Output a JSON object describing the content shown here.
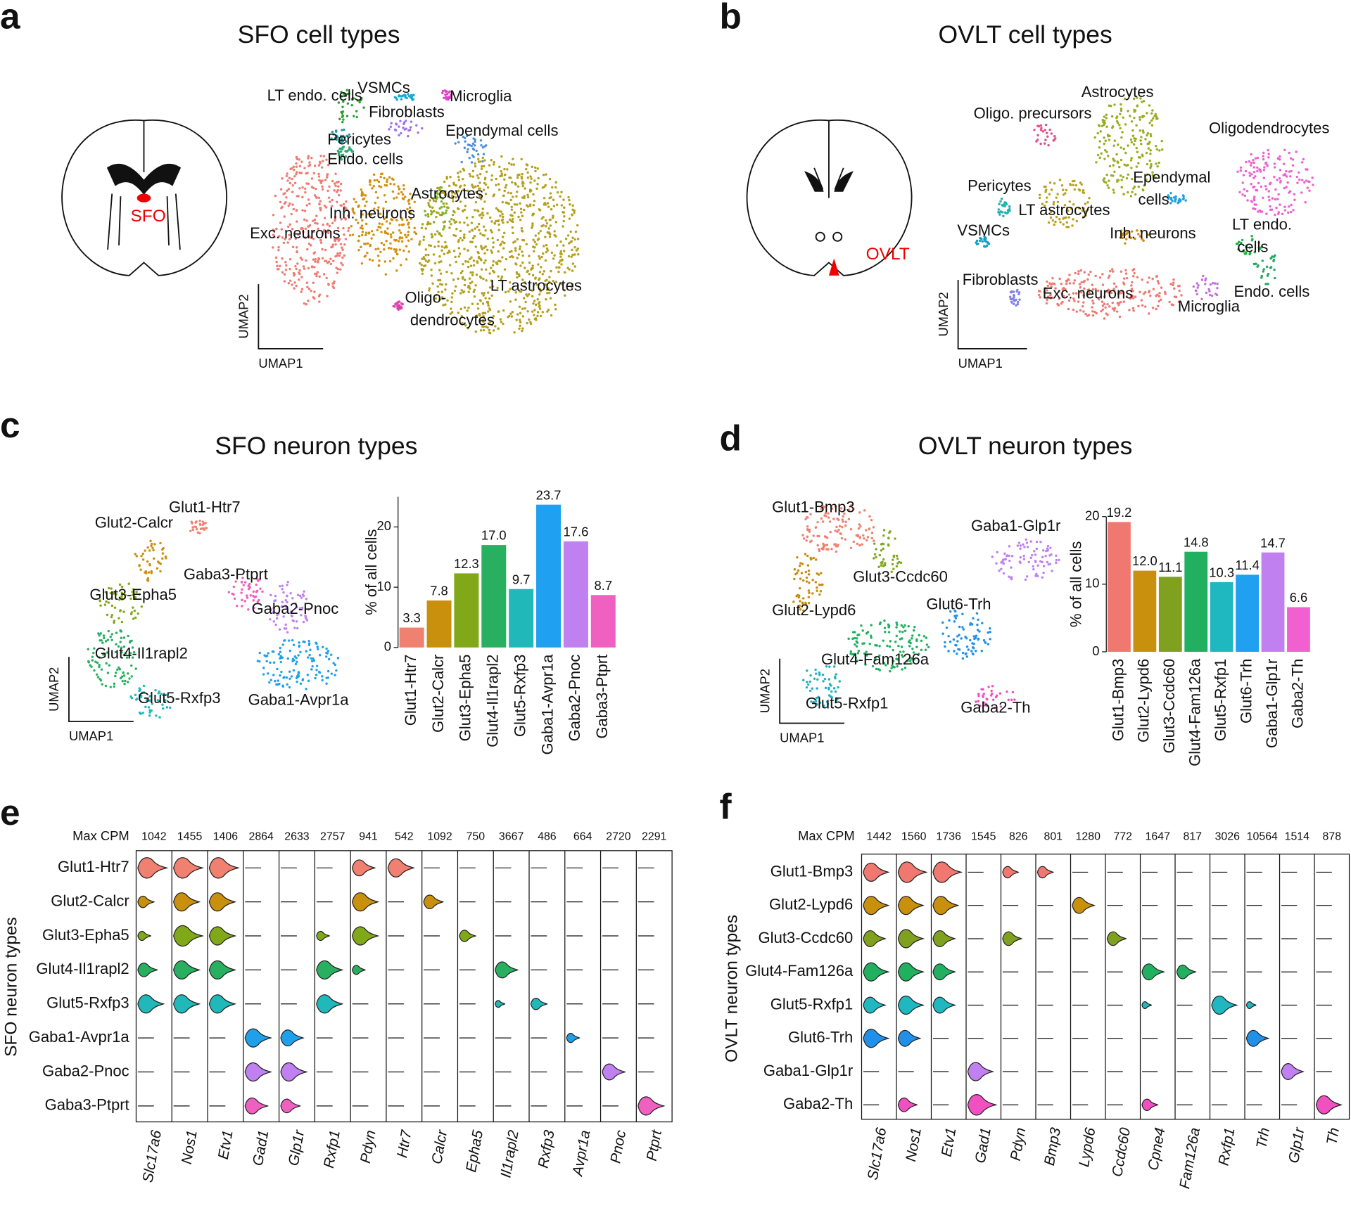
{
  "panel_labels": [
    "a",
    "b",
    "c",
    "d",
    "e",
    "f"
  ],
  "chart_data": [
    {
      "type": "umap",
      "title": "SFO cell types",
      "region_label": "SFO",
      "x_label": "UMAP1",
      "y_label": "UMAP2",
      "clusters": [
        {
          "label": [
            "LT endo. cells"
          ],
          "color": "#2ca02c"
        },
        {
          "label": [
            "VSMCs"
          ],
          "color": "#17a9d8"
        },
        {
          "label": [
            "Microglia"
          ],
          "color": "#e043c8"
        },
        {
          "label": [
            "Fibroblasts"
          ],
          "color": "#a070f0"
        },
        {
          "label": [
            "Pericytes"
          ],
          "color": "#1f9f9f"
        },
        {
          "label": [
            "Endo. cells"
          ],
          "color": "#2eaa70"
        },
        {
          "label": [
            "Ependymal cells"
          ],
          "color": "#4a90e2"
        },
        {
          "label": [
            "Astrocytes"
          ],
          "color": "#7db320"
        },
        {
          "label": [
            "Inh. neurons"
          ],
          "color": "#d4900c"
        },
        {
          "label": [
            "Exc. neurons"
          ],
          "color": "#f07b72"
        },
        {
          "label": [
            "LT astrocytes"
          ],
          "color": "#b5a01c"
        },
        {
          "label": [
            "Oligo-",
            "dendrocytes"
          ],
          "color": "#e040b0"
        }
      ]
    },
    {
      "type": "umap",
      "title": "OVLT cell types",
      "region_label": "OVLT",
      "x_label": "UMAP1",
      "y_label": "UMAP2",
      "clusters": [
        {
          "label": [
            "Astrocytes"
          ],
          "color": "#9aad20"
        },
        {
          "label": [
            "Oligo. precursors"
          ],
          "color": "#e0508a"
        },
        {
          "label": [
            "Oligodendrocytes"
          ],
          "color": "#f060d0"
        },
        {
          "label": [
            "Pericytes"
          ],
          "color": "#20b0b0"
        },
        {
          "label": [
            "Ependymal",
            "cells"
          ],
          "color": "#20a0e0"
        },
        {
          "label": [
            "LT astrocytes"
          ],
          "color": "#b8a020"
        },
        {
          "label": [
            "VSMCs"
          ],
          "color": "#10a0c8"
        },
        {
          "label": [
            "Inh. neurons"
          ],
          "color": "#d08a10"
        },
        {
          "label": [
            "LT endo.",
            "cells"
          ],
          "color": "#20b040"
        },
        {
          "label": [
            "Fibroblasts"
          ],
          "color": "#8080f0"
        },
        {
          "label": [
            "Exc. neurons"
          ],
          "color": "#f07870"
        },
        {
          "label": [
            "Microglia"
          ],
          "color": "#c070e0"
        },
        {
          "label": [
            "Endo. cells"
          ],
          "color": "#20a860"
        }
      ]
    },
    {
      "type": "umap",
      "title": "SFO neuron types",
      "x_label": "UMAP1",
      "y_label": "UMAP2",
      "clusters": [
        {
          "label": [
            "Glut1-Htr7"
          ],
          "color": "#f08070"
        },
        {
          "label": [
            "Glut2-Calcr"
          ],
          "color": "#c8900c"
        },
        {
          "label": [
            "Glut3-Epha5"
          ],
          "color": "#80a818"
        },
        {
          "label": [
            "Glut4-Il1rapl2"
          ],
          "color": "#28b060"
        },
        {
          "label": [
            "Glut5-Rxfp3"
          ],
          "color": "#20b8b8"
        },
        {
          "label": [
            "Gaba3-Ptprt"
          ],
          "color": "#f060c0"
        },
        {
          "label": [
            "Gaba2-Pnoc"
          ],
          "color": "#c080f0"
        },
        {
          "label": [
            "Gaba1-Avpr1a"
          ],
          "color": "#20a0e8"
        }
      ]
    },
    {
      "type": "bar",
      "y_label": "% of all cells",
      "categories": [
        "Glut1-Htr7",
        "Glut2-Calcr",
        "Glut3-Epha5",
        "Glut4-Il1rapl2",
        "Glut5-Rxfp3",
        "Gaba1-Avpr1a",
        "Gaba2-Pnoc",
        "Gaba3-Ptprt"
      ],
      "values": [
        3.3,
        7.8,
        12.3,
        17.0,
        9.7,
        23.7,
        17.6,
        8.7
      ],
      "value_labels": [
        "3.3",
        "7.8",
        "12.3",
        "17.0",
        "9.7",
        "23.7",
        "17.6",
        "8.7"
      ],
      "colors": [
        "#f08070",
        "#c8900c",
        "#80a818",
        "#28b060",
        "#20b8b8",
        "#20a0f0",
        "#c080f0",
        "#f060c0"
      ],
      "ylim": [
        0,
        25
      ],
      "yticks": [
        0,
        10,
        20
      ]
    },
    {
      "type": "umap",
      "title": "OVLT neuron types",
      "x_label": "UMAP1",
      "y_label": "UMAP2",
      "clusters": [
        {
          "label": [
            "Glut1-Bmp3"
          ],
          "color": "#f08070"
        },
        {
          "label": [
            "Glut2-Lypd6"
          ],
          "color": "#c88c10"
        },
        {
          "label": [
            "Glut3-Ccdc60"
          ],
          "color": "#80a820"
        },
        {
          "label": [
            "Glut4-Fam126a"
          ],
          "color": "#20b060"
        },
        {
          "label": [
            "Glut5-Rxfp1"
          ],
          "color": "#20b0c0"
        },
        {
          "label": [
            "Glut6-Trh"
          ],
          "color": "#2090e8"
        },
        {
          "label": [
            "Gaba1-Glp1r"
          ],
          "color": "#c080f0"
        },
        {
          "label": [
            "Gaba2-Th"
          ],
          "color": "#f050c0"
        }
      ]
    },
    {
      "type": "bar",
      "y_label": "% of all cells",
      "categories": [
        "Glut1-Bmp3",
        "Glut2-Lypd6",
        "Glut3-Ccdc60",
        "Glut4-Fam126a",
        "Glut5-Rxfp1",
        "Glut6-Trh",
        "Gaba1-Glp1r",
        "Gaba2-Th"
      ],
      "values": [
        19.2,
        12.0,
        11.1,
        14.8,
        10.3,
        11.4,
        14.7,
        6.6
      ],
      "value_labels": [
        "19.2",
        "12.0",
        "11.1",
        "14.8",
        "10.3",
        "11.4",
        "14.7",
        "6.6"
      ],
      "colors": [
        "#f07870",
        "#c8900c",
        "#80a020",
        "#20b060",
        "#20b8c0",
        "#20a0f0",
        "#c080f0",
        "#f060d0"
      ],
      "ylim": [
        0,
        20
      ],
      "yticks": [
        0,
        10,
        20
      ]
    },
    {
      "type": "violin",
      "header_label": "Max CPM",
      "y_label": "SFO neuron types",
      "genes": [
        "Slc17a6",
        "Nos1",
        "Etv1",
        "Gad1",
        "Glp1r",
        "Rxfp1",
        "Pdyn",
        "Htr7",
        "Calcr",
        "Epha5",
        "Il1rapl2",
        "Rxfp3",
        "Avpr1a",
        "Pnoc",
        "Ptprt"
      ],
      "max_cpm": [
        1042,
        1455,
        1406,
        2864,
        2633,
        2757,
        941,
        542,
        1092,
        750,
        3667,
        486,
        664,
        2720,
        2291
      ],
      "series": [
        {
          "name": "Glut1-Htr7",
          "color": "#f08070",
          "values": [
            0.9,
            0.9,
            0.9,
            0,
            0,
            0,
            0.7,
            0.8,
            0,
            0,
            0,
            0,
            0,
            0,
            0
          ]
        },
        {
          "name": "Glut2-Calcr",
          "color": "#c8900c",
          "values": [
            0.5,
            0.8,
            0.8,
            0,
            0,
            0,
            0.8,
            0,
            0.6,
            0,
            0,
            0,
            0,
            0,
            0
          ]
        },
        {
          "name": "Glut3-Epha5",
          "color": "#80a818",
          "values": [
            0.4,
            0.9,
            0.8,
            0,
            0,
            0.4,
            0.8,
            0,
            0,
            0.5,
            0,
            0,
            0,
            0,
            0
          ]
        },
        {
          "name": "Glut4-Il1rapl2",
          "color": "#28b060",
          "values": [
            0.6,
            0.8,
            0.8,
            0,
            0,
            0.8,
            0.4,
            0,
            0,
            0,
            0.7,
            0,
            0,
            0,
            0
          ]
        },
        {
          "name": "Glut5-Rxfp3",
          "color": "#20b8b8",
          "values": [
            0.8,
            0.8,
            0.8,
            0,
            0,
            0.8,
            0,
            0,
            0,
            0,
            0.3,
            0.5,
            0,
            0,
            0
          ]
        },
        {
          "name": "Gaba1-Avpr1a",
          "color": "#20a0e8",
          "values": [
            0,
            0,
            0,
            0.8,
            0.7,
            0,
            0,
            0,
            0,
            0,
            0,
            0,
            0.4,
            0,
            0
          ]
        },
        {
          "name": "Gaba2-Pnoc",
          "color": "#c080f0",
          "values": [
            0,
            0,
            0,
            0.8,
            0.8,
            0,
            0,
            0,
            0,
            0,
            0,
            0,
            0,
            0.7,
            0
          ]
        },
        {
          "name": "Gaba3-Ptprt",
          "color": "#f060c0",
          "values": [
            0,
            0,
            0,
            0.7,
            0.6,
            0,
            0,
            0,
            0,
            0,
            0,
            0,
            0,
            0,
            0.8
          ]
        }
      ]
    },
    {
      "type": "violin",
      "header_label": "Max CPM",
      "y_label": "OVLT neuron types",
      "genes": [
        "Slc17a6",
        "Nos1",
        "Etv1",
        "Gad1",
        "Pdyn",
        "Bmp3",
        "Lypd6",
        "Ccdc60",
        "Cpne4",
        "Fam126a",
        "Rxfp1",
        "Trh",
        "Glp1r",
        "Th"
      ],
      "max_cpm": [
        1442,
        1560,
        1736,
        1545,
        826,
        801,
        1280,
        772,
        1647,
        817,
        3026,
        10564,
        1514,
        878
      ],
      "series": [
        {
          "name": "Glut1-Bmp3",
          "color": "#f07870",
          "values": [
            0.8,
            0.9,
            0.9,
            0,
            0.5,
            0.5,
            0,
            0,
            0,
            0,
            0,
            0,
            0,
            0
          ]
        },
        {
          "name": "Glut2-Lypd6",
          "color": "#c8900c",
          "values": [
            0.8,
            0.8,
            0.8,
            0,
            0,
            0,
            0.7,
            0,
            0,
            0,
            0,
            0,
            0,
            0
          ]
        },
        {
          "name": "Glut3-Ccdc60",
          "color": "#80a020",
          "values": [
            0.7,
            0.8,
            0.7,
            0,
            0.6,
            0,
            0,
            0.6,
            0,
            0,
            0,
            0,
            0,
            0
          ]
        },
        {
          "name": "Glut4-Fam126a",
          "color": "#20b060",
          "values": [
            0.8,
            0.8,
            0.7,
            0,
            0,
            0,
            0,
            0,
            0.7,
            0.6,
            0,
            0,
            0,
            0
          ]
        },
        {
          "name": "Glut5-Rxfp1",
          "color": "#20b8c0",
          "values": [
            0.7,
            0.8,
            0.7,
            0,
            0,
            0,
            0,
            0,
            0.3,
            0,
            0.8,
            0.3,
            0,
            0
          ]
        },
        {
          "name": "Glut6-Trh",
          "color": "#2090e8",
          "values": [
            0.8,
            0.7,
            0,
            0,
            0,
            0,
            0,
            0,
            0,
            0,
            0,
            0.7,
            0,
            0
          ]
        },
        {
          "name": "Gaba1-Glp1r",
          "color": "#c080f0",
          "values": [
            0,
            0,
            0,
            0.8,
            0,
            0,
            0,
            0,
            0,
            0,
            0,
            0,
            0.7,
            0
          ]
        },
        {
          "name": "Gaba2-Th",
          "color": "#f050c0",
          "values": [
            0,
            0.6,
            0,
            0.9,
            0,
            0,
            0,
            0,
            0.5,
            0,
            0,
            0,
            0,
            0.8
          ]
        }
      ]
    }
  ]
}
